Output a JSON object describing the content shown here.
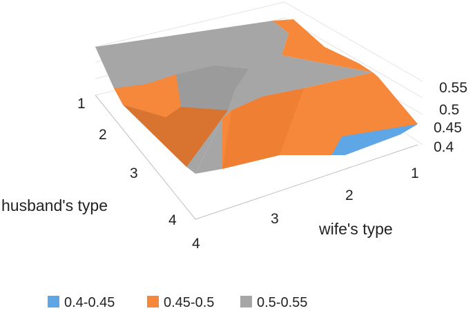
{
  "chart_data": {
    "type": "surface",
    "title": "",
    "x_axis": {
      "label": "wife's type",
      "categories": [
        "1",
        "2",
        "3",
        "4"
      ]
    },
    "y_axis": {
      "label": "husband's type",
      "categories": [
        "1",
        "2",
        "3",
        "4"
      ]
    },
    "z_axis": {
      "ticks": [
        "0.4",
        "0.45",
        "0.5",
        "0.55"
      ],
      "range": [
        0.4,
        0.55
      ]
    },
    "legend": {
      "placement": "bottom",
      "entries": [
        {
          "label": "0.4-0.45",
          "color": "#5fa6e6"
        },
        {
          "label": "0.45-0.5",
          "color": "#f5883a"
        },
        {
          "label": "0.5-0.55",
          "color": "#a6a6a6"
        }
      ]
    },
    "grid": true
  }
}
